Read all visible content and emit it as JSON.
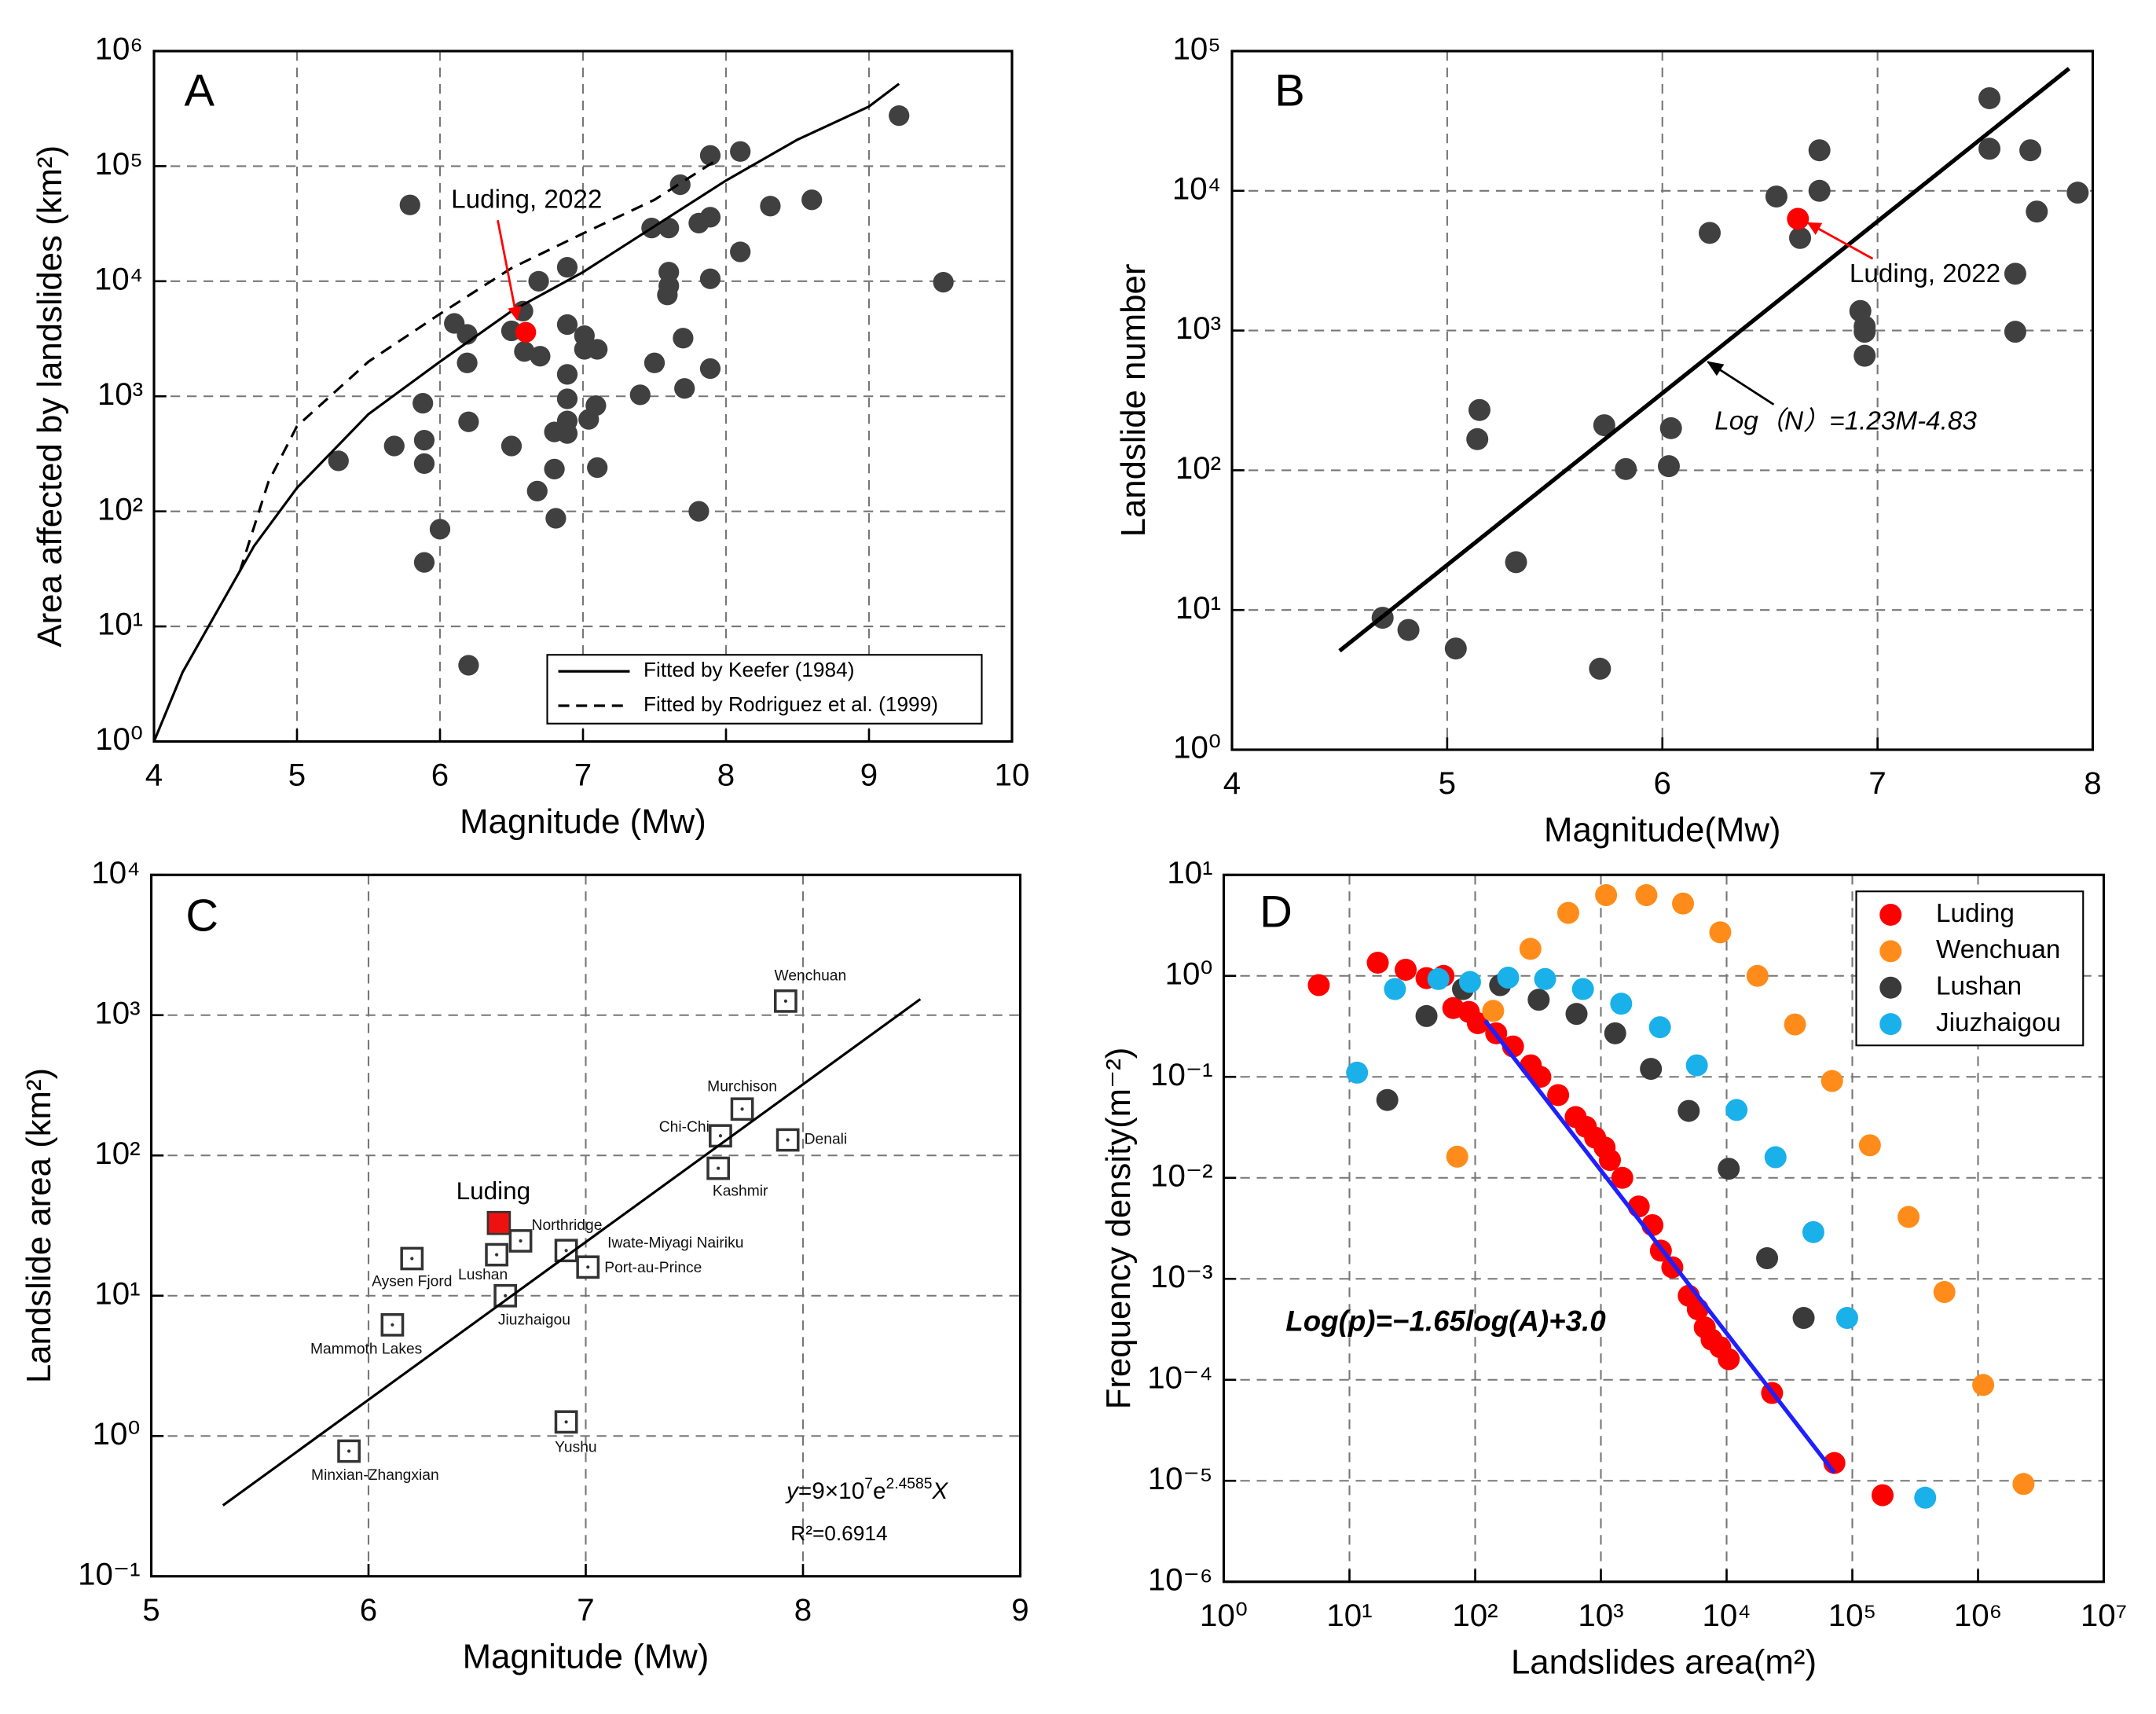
{
  "chart_data": [
    {
      "type": "scatter",
      "panel": "A",
      "xlabel": "Magnitude (Mw)",
      "ylabel": "Area affected by landslides (km²)",
      "xlim": [
        4,
        10
      ],
      "xticks": [
        4,
        5,
        6,
        7,
        8,
        9,
        10
      ],
      "ylim": [
        1,
        1000000
      ],
      "yscale": "log",
      "yticks": [
        {
          "value": 1,
          "label": "10⁰"
        },
        {
          "value": 10,
          "label": "10¹"
        },
        {
          "value": 100,
          "label": "10²"
        },
        {
          "value": 1000,
          "label": "10³"
        },
        {
          "value": 10000,
          "label": "10⁴"
        },
        {
          "value": 100000,
          "label": "10⁵"
        },
        {
          "value": 1000000,
          "label": "10⁶"
        }
      ],
      "grid": true,
      "legend": "lower right",
      "series": [
        {
          "mode": "markers",
          "marker": "circle",
          "color": "#404040",
          "x": [
            5.79,
            5.29,
            5.68,
            5.88,
            5.89,
            5.89,
            6.0,
            5.89,
            6.1,
            6.19,
            6.19,
            6.2,
            6.2,
            6.5,
            6.5,
            6.58,
            6.59,
            6.7,
            6.69,
            6.68,
            6.8,
            6.8,
            6.81,
            6.89,
            6.89,
            6.89,
            6.89,
            6.89,
            6.89,
            7.01,
            7.01,
            7.04,
            7.1,
            7.09,
            7.1,
            7.4,
            7.5,
            7.48,
            7.6,
            7.6,
            7.6,
            7.59,
            7.68,
            7.7,
            7.71,
            7.81,
            7.81,
            7.89,
            7.89,
            7.89,
            7.89,
            8.1,
            8.1,
            8.31,
            8.6,
            9.21,
            9.52
          ],
          "values": [
            46000,
            275,
            370,
            870,
            415,
            260,
            70,
            36,
            4300,
            3450,
            1950,
            600,
            4.6,
            370,
            3700,
            5500,
            2450,
            2230,
            10000,
            150,
            233,
            490,
            87,
            13200,
            4200,
            1550,
            950,
            610,
            475,
            3360,
            2560,
            630,
            2560,
            830,
            240,
            1030,
            1950,
            29000,
            29000,
            12000,
            9100,
            7600,
            69000,
            3200,
            1170,
            100,
            32000,
            36000,
            124000,
            10500,
            1740,
            134000,
            18000,
            45000,
            51000,
            275000,
            9800
          ]
        },
        {
          "mode": "markers",
          "marker": "circle",
          "color": "#ff0000",
          "x": [
            6.6
          ],
          "values": [
            3600
          ]
        },
        {
          "mode": "line",
          "name": "Fitted by Keefer (1984)",
          "color": "#000000",
          "dash": false,
          "x": [
            4,
            4.2,
            4.4,
            4.7,
            5,
            5.5,
            6,
            6.5,
            7,
            7.5,
            8,
            8.5,
            9,
            9.21
          ],
          "values": [
            1,
            4,
            11,
            50,
            160,
            700,
            2000,
            5500,
            12000,
            30000,
            75000,
            170000,
            330000,
            520000
          ]
        },
        {
          "mode": "line",
          "name": "Fitted by Rodriguez et al. (1999)",
          "color": "#000000",
          "dash": true,
          "x": [
            4.6,
            4.8,
            5,
            5.5,
            6,
            6.5,
            7,
            7.5,
            7.92
          ],
          "values": [
            30,
            180,
            550,
            2000,
            5200,
            13000,
            26000,
            51000,
            110000
          ]
        }
      ],
      "annotations": [
        {
          "text": "Luding, 2022",
          "color": "#ff0000"
        }
      ]
    },
    {
      "type": "scatter",
      "panel": "B",
      "xlabel": "Magnitude(Mw)",
      "ylabel": "Landslide number",
      "xlim": [
        4,
        8
      ],
      "xticks": [
        4,
        5,
        6,
        7,
        8
      ],
      "ylim": [
        1,
        100000
      ],
      "yscale": "log",
      "yticks": [
        {
          "value": 1,
          "label": "10⁰"
        },
        {
          "value": 10,
          "label": "10¹"
        },
        {
          "value": 100,
          "label": "10²"
        },
        {
          "value": 1000,
          "label": "10³"
        },
        {
          "value": 10000,
          "label": "10⁴"
        },
        {
          "value": 100000,
          "label": "10⁵"
        }
      ],
      "grid": true,
      "series": [
        {
          "mode": "markers",
          "marker": "circle",
          "color": "#404040",
          "x": [
            4.7,
            4.82,
            5.04,
            5.15,
            5.14,
            5.32,
            5.71,
            5.73,
            5.83,
            6.03,
            6.04,
            6.22,
            6.53,
            6.64,
            6.73,
            6.73,
            6.92,
            6.94,
            6.94,
            6.94,
            7.52,
            7.52,
            7.71,
            7.74,
            7.64,
            7.64,
            7.93
          ],
          "values": [
            8.8,
            7.2,
            5.3,
            270,
            167,
            22,
            3.8,
            210,
            102,
            107,
            200,
            5000,
            9100,
            4600,
            10000,
            19500,
            1380,
            1070,
            980,
            660,
            46000,
            20000,
            19500,
            7100,
            2550,
            980,
            9700
          ]
        },
        {
          "mode": "markers",
          "marker": "circle",
          "color": "#ff0000",
          "x": [
            6.63
          ],
          "values": [
            6300
          ]
        },
        {
          "mode": "line",
          "color": "#000000",
          "dash": false,
          "width": 3,
          "x": [
            4.5,
            7.89
          ],
          "values": [
            5.1,
            75000
          ]
        }
      ],
      "annotations": [
        {
          "text": "Luding, 2022",
          "color": "#ff0000"
        },
        {
          "text": "Log（N）=1.23M-4.83",
          "color": "#000000"
        }
      ]
    },
    {
      "type": "scatter",
      "panel": "C",
      "xlabel": "Magnitude (Mw)",
      "ylabel": "Landslide area (km²)",
      "xlim": [
        5,
        9
      ],
      "xticks": [
        5,
        6,
        7,
        8,
        9
      ],
      "ylim": [
        0.1,
        10000
      ],
      "yscale": "log",
      "yticks": [
        {
          "value": 0.1,
          "label": "10⁻¹"
        },
        {
          "value": 1,
          "label": "10⁰"
        },
        {
          "value": 10,
          "label": "10¹"
        },
        {
          "value": 100,
          "label": "10²"
        },
        {
          "value": 1000,
          "label": "10³"
        },
        {
          "value": 10000,
          "label": "10⁴"
        }
      ],
      "grid": true,
      "series": [
        {
          "mode": "markers",
          "marker": "square",
          "color": "#333333",
          "x": [
            7.92,
            7.72,
            7.62,
            7.93,
            7.61,
            6.7,
            6.59,
            6.2,
            6.91,
            7.01,
            6.63,
            6.11,
            6.91,
            5.91
          ],
          "values": [
            1260,
            214,
            138,
            129,
            81,
            24.6,
            19.6,
            18.4,
            21,
            16,
            10,
            6.2,
            1.26,
            0.78
          ],
          "labels": [
            "Wenchuan",
            "Murchison",
            "Chi-Chi",
            "Denali",
            "Kashmir",
            "Northridge",
            "Lushan",
            "Aysen Fjord",
            "Iwate-Miyagi Nairiku",
            "Port-au-Prince",
            "Jiuzhaigou",
            "Mammoth Lakes",
            "Yushu",
            "Minxian-Zhangxian"
          ]
        },
        {
          "mode": "markers",
          "marker": "filled-square",
          "color": "#ee1111",
          "x": [
            6.6
          ],
          "values": [
            33
          ],
          "labels": [
            "Luding"
          ]
        },
        {
          "mode": "line",
          "color": "#000000",
          "dash": false,
          "x": [
            5.33,
            8.54
          ],
          "values": [
            0.32,
            1300
          ]
        }
      ],
      "equation": [
        "y",
        "=9×10",
        "7",
        "e",
        "2.4585",
        "X"
      ],
      "r2": "R²=0.6914"
    },
    {
      "type": "scatter",
      "panel": "D",
      "xlabel": "Landslides area(m²)",
      "ylabel": "Frequency density(m⁻²)",
      "xlim": [
        1,
        10000000
      ],
      "xscale": "log",
      "xticks": [
        {
          "value": 1,
          "label": "10⁰"
        },
        {
          "value": 10,
          "label": "10¹"
        },
        {
          "value": 100,
          "label": "10²"
        },
        {
          "value": 1000,
          "label": "10³"
        },
        {
          "value": 10000,
          "label": "10⁴"
        },
        {
          "value": 100000,
          "label": "10⁵"
        },
        {
          "value": 1000000,
          "label": "10⁶"
        },
        {
          "value": 10000000,
          "label": "10⁷"
        }
      ],
      "ylim": [
        1e-06,
        10
      ],
      "yscale": "log",
      "yticks": [
        {
          "value": 1e-06,
          "label": "10⁻⁶"
        },
        {
          "value": 1e-05,
          "label": "10⁻⁵"
        },
        {
          "value": 0.0001,
          "label": "10⁻⁴"
        },
        {
          "value": 0.001,
          "label": "10⁻³"
        },
        {
          "value": 0.01,
          "label": "10⁻²"
        },
        {
          "value": 0.1,
          "label": "10⁻¹"
        },
        {
          "value": 1,
          "label": "10⁰"
        },
        {
          "value": 10,
          "label": "10¹"
        }
      ],
      "grid": true,
      "legend": "upper right",
      "series": [
        {
          "mode": "markers",
          "marker": "circle",
          "name": "Luding",
          "color": "#ff0000",
          "x": [
            5.7,
            16.8,
            28,
            41,
            56,
            67,
            89,
            105,
            147,
            200,
            277,
            330,
            457,
            630,
            760,
            900,
            1070,
            1180,
            1480,
            2000,
            2570,
            3000,
            3700,
            5000,
            5900,
            6700,
            7600,
            8900,
            10400,
            23000,
            72000,
            174000
          ],
          "values": [
            0.81,
            1.35,
            1.15,
            0.95,
            1.0,
            0.48,
            0.44,
            0.34,
            0.27,
            0.2,
            0.13,
            0.1,
            0.066,
            0.04,
            0.032,
            0.025,
            0.02,
            0.015,
            0.01,
            0.0052,
            0.0034,
            0.0019,
            0.0013,
            0.00068,
            0.0005,
            0.00033,
            0.00025,
            0.00021,
            0.00016,
            7.4e-05,
            1.5e-05,
            7.2e-06
          ]
        },
        {
          "mode": "markers",
          "marker": "circle",
          "name": "Wenchuan",
          "color": "#ff8c1a",
          "x": [
            72,
            139,
            275,
            550,
            1100,
            2300,
            4500,
            8900,
            17600,
            35000,
            69000,
            138000,
            280000,
            540000,
            1100000,
            2300000
          ],
          "values": [
            0.0162,
            0.45,
            1.85,
            4.2,
            6.3,
            6.3,
            5.2,
            2.7,
            1.0,
            0.33,
            0.091,
            0.021,
            0.0041,
            0.00074,
            8.9e-05,
            9.3e-06
          ]
        },
        {
          "mode": "markers",
          "marker": "circle",
          "name": "Lushan",
          "color": "#3a3a3a",
          "x": [
            20,
            41,
            80,
            158,
            320,
            640,
            1300,
            2500,
            5000,
            10400,
            21000,
            41000
          ],
          "values": [
            0.059,
            0.4,
            0.74,
            0.81,
            0.58,
            0.42,
            0.27,
            0.12,
            0.046,
            0.0123,
            0.0016,
            0.00041
          ]
        },
        {
          "mode": "markers",
          "marker": "circle",
          "name": "Jiuzhaigou",
          "color": "#1ab0ea",
          "x": [
            11.5,
            23,
            51,
            91,
            183,
            360,
            720,
            1450,
            2950,
            5800,
            12000,
            24500,
            49000,
            91000,
            380000
          ],
          "values": [
            0.11,
            0.74,
            0.93,
            0.87,
            0.96,
            0.93,
            0.74,
            0.53,
            0.31,
            0.13,
            0.047,
            0.016,
            0.0029,
            0.00041,
            6.8e-06
          ]
        },
        {
          "mode": "line",
          "color": "#1f1fff",
          "dash": false,
          "width": 3,
          "x": [
            120,
            72000
          ],
          "values": [
            0.36,
            1.2e-05
          ]
        }
      ],
      "annotations": [
        {
          "text": "Log(p)=−1.65log(A)+3.0",
          "color": "#1f1fff"
        }
      ]
    }
  ]
}
